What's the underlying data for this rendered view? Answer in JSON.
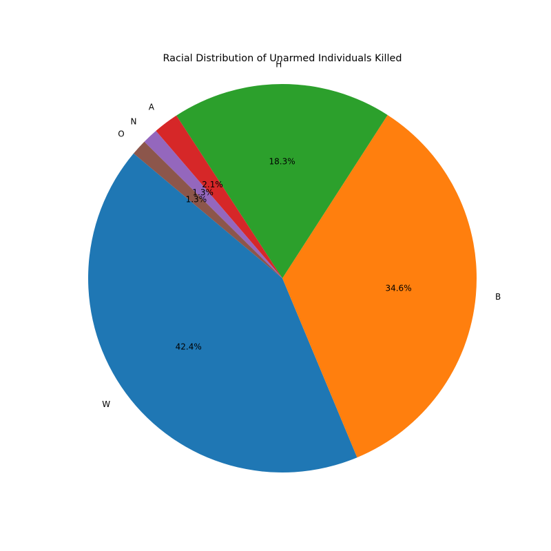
{
  "chart_data": {
    "type": "pie",
    "title": "Racial Distribution of Unarmed Individuals Killed",
    "categories": [
      "W",
      "B",
      "H",
      "A",
      "N",
      "O"
    ],
    "values": [
      42.4,
      34.6,
      18.3,
      2.1,
      1.3,
      1.3
    ],
    "value_labels": [
      "42.4%",
      "34.6%",
      "18.3%",
      "2.1%",
      "1.3%",
      "1.3%"
    ],
    "colors": [
      "#1f77b4",
      "#ff7f0e",
      "#2ca02c",
      "#d62728",
      "#9467bd",
      "#8c564b"
    ],
    "start_angle_deg": 140,
    "direction": "counterclockwise",
    "legend": "none"
  }
}
